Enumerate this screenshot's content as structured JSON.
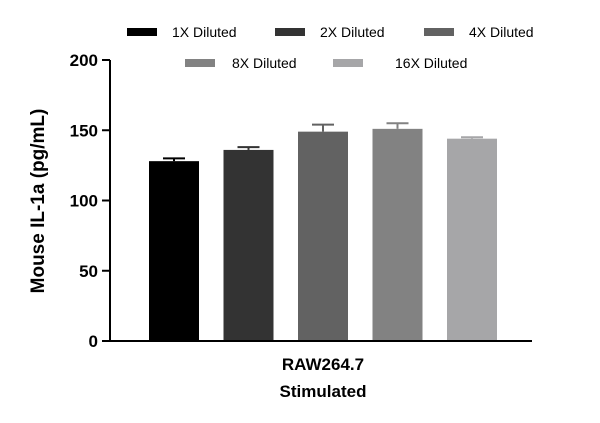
{
  "chart_data": {
    "type": "bar",
    "title": "",
    "xlabel": "",
    "ylabel": "Mouse IL-1a (pg/mL)",
    "category_lines": [
      "RAW264.7",
      "Stimulated"
    ],
    "ylim": [
      0,
      200
    ],
    "yticks": [
      0,
      50,
      100,
      150,
      200
    ],
    "legend_position": "top",
    "error_bars": true,
    "series": [
      {
        "name": "1X Diluted",
        "value": 128,
        "error": 2,
        "color": "#000000"
      },
      {
        "name": "2X Diluted",
        "value": 136,
        "error": 2,
        "color": "#333333"
      },
      {
        "name": "4X Diluted",
        "value": 149,
        "error": 5,
        "color": "#626262"
      },
      {
        "name": "8X Diluted",
        "value": 151,
        "error": 4,
        "color": "#828282"
      },
      {
        "name": "16X Diluted",
        "value": 144,
        "error": 1,
        "color": "#a6a6a8"
      }
    ]
  }
}
